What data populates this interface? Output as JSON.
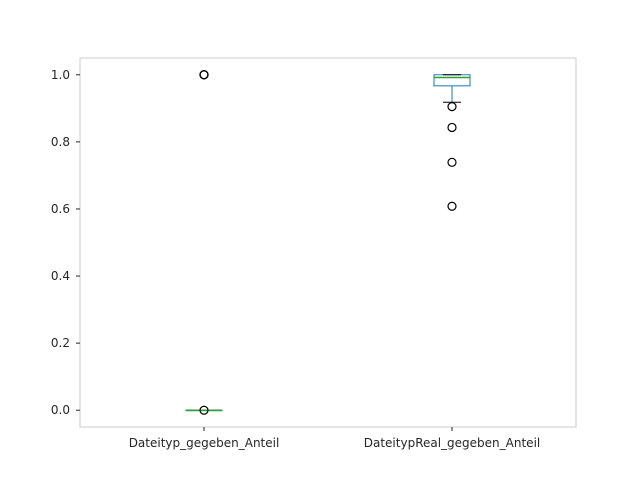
{
  "chart_data": {
    "type": "box",
    "categories": [
      "Dateityp_gegeben_Anteil",
      "DateitypReal_gegeben_Anteil"
    ],
    "series": [
      {
        "q1": 0.0,
        "median": 0.0,
        "q3": 0.0,
        "whisker_low": 0.0,
        "whisker_high": 0.0,
        "outliers": [
          0.0,
          1.0,
          1.0,
          1.0
        ]
      },
      {
        "q1": 0.967,
        "median": 0.992,
        "q3": 1.0,
        "whisker_low": 0.918,
        "whisker_high": 1.0,
        "outliers": [
          0.905,
          0.843,
          0.739,
          0.608
        ]
      }
    ],
    "yticks": [
      "0.0",
      "0.2",
      "0.4",
      "0.6",
      "0.8",
      "1.0"
    ],
    "ylim": [
      -0.05,
      1.05
    ],
    "grid": false,
    "colors": {
      "box": "#1f77b4",
      "median": "#2ca02c",
      "whisker": "#1f77b4",
      "cap": "#000000",
      "flier": "#000000",
      "frame": "#cccccc",
      "text": "#262626"
    }
  }
}
